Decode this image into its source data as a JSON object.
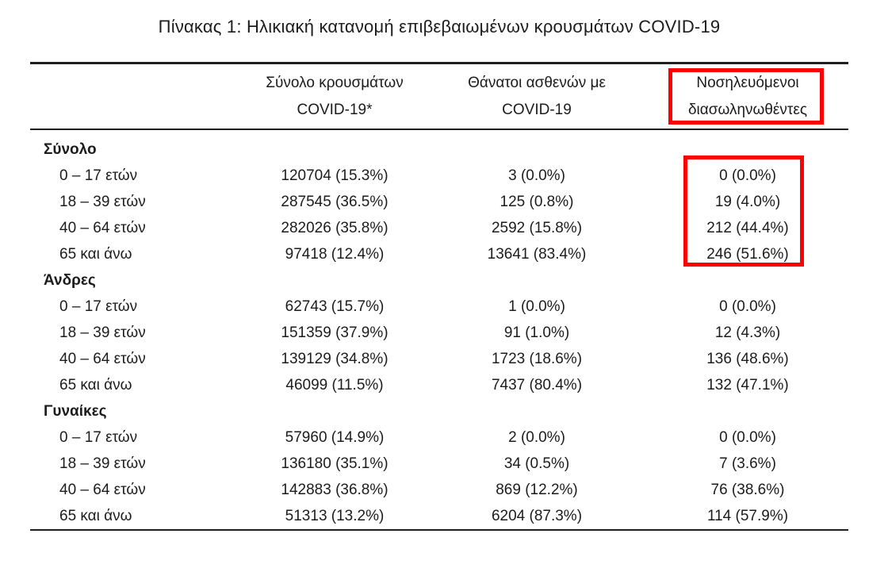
{
  "title": "Πίνακας 1: Ηλικιακή κατανομή επιβεβαιωμένων κρουσμάτων COVID-19",
  "table": {
    "col_headers": [
      {
        "line1": "Σύνολο κρουσμάτων",
        "line2": "COVID-19*"
      },
      {
        "line1": "Θάνατοι ασθενών με",
        "line2": "COVID-19"
      },
      {
        "line1": "Νοσηλευόμενοι",
        "line2": "διασωληνωθέντες"
      }
    ],
    "sections": [
      {
        "label": "Σύνολο",
        "rows": [
          {
            "age": "0 – 17 ετών",
            "cases": "120704 (15.3%)",
            "deaths": "3 (0.0%)",
            "intubated": "0 (0.0%)"
          },
          {
            "age": "18 – 39 ετών",
            "cases": "287545 (36.5%)",
            "deaths": "125 (0.8%)",
            "intubated": "19 (4.0%)"
          },
          {
            "age": "40 – 64 ετών",
            "cases": "282026 (35.8%)",
            "deaths": "2592 (15.8%)",
            "intubated": "212 (44.4%)"
          },
          {
            "age": "65 και άνω",
            "cases": "97418 (12.4%)",
            "deaths": "13641 (83.4%)",
            "intubated": "246 (51.6%)"
          }
        ]
      },
      {
        "label": "Άνδρες",
        "rows": [
          {
            "age": "0 – 17 ετών",
            "cases": "62743 (15.7%)",
            "deaths": "1 (0.0%)",
            "intubated": "0 (0.0%)"
          },
          {
            "age": "18 – 39 ετών",
            "cases": "151359 (37.9%)",
            "deaths": "91 (1.0%)",
            "intubated": "12 (4.3%)"
          },
          {
            "age": "40 – 64 ετών",
            "cases": "139129 (34.8%)",
            "deaths": "1723 (18.6%)",
            "intubated": "136 (48.6%)"
          },
          {
            "age": "65 και άνω",
            "cases": "46099 (11.5%)",
            "deaths": "7437 (80.4%)",
            "intubated": "132 (47.1%)"
          }
        ]
      },
      {
        "label": "Γυναίκες",
        "rows": [
          {
            "age": "0 – 17 ετών",
            "cases": "57960 (14.9%)",
            "deaths": "2 (0.0%)",
            "intubated": "0 (0.0%)"
          },
          {
            "age": "18 – 39 ετών",
            "cases": "136180 (35.1%)",
            "deaths": "34 (0.5%)",
            "intubated": "7 (3.6%)"
          },
          {
            "age": "40 – 64 ετών",
            "cases": "142883 (36.8%)",
            "deaths": "869 (12.2%)",
            "intubated": "76 (38.6%)"
          },
          {
            "age": "65 και άνω",
            "cases": "51313 (13.2%)",
            "deaths": "6204 (87.3%)",
            "intubated": "114 (57.9%)"
          }
        ]
      }
    ]
  },
  "annotations": {
    "highlight_color": "#fb0202",
    "highlighted_header": "Νοσηλευόμενοι διασωληνωθέντες",
    "highlighted_values": [
      "0 (0.0%)",
      "19 (4.0%)",
      "212 (44.4%)",
      "246 (51.6%)"
    ]
  }
}
